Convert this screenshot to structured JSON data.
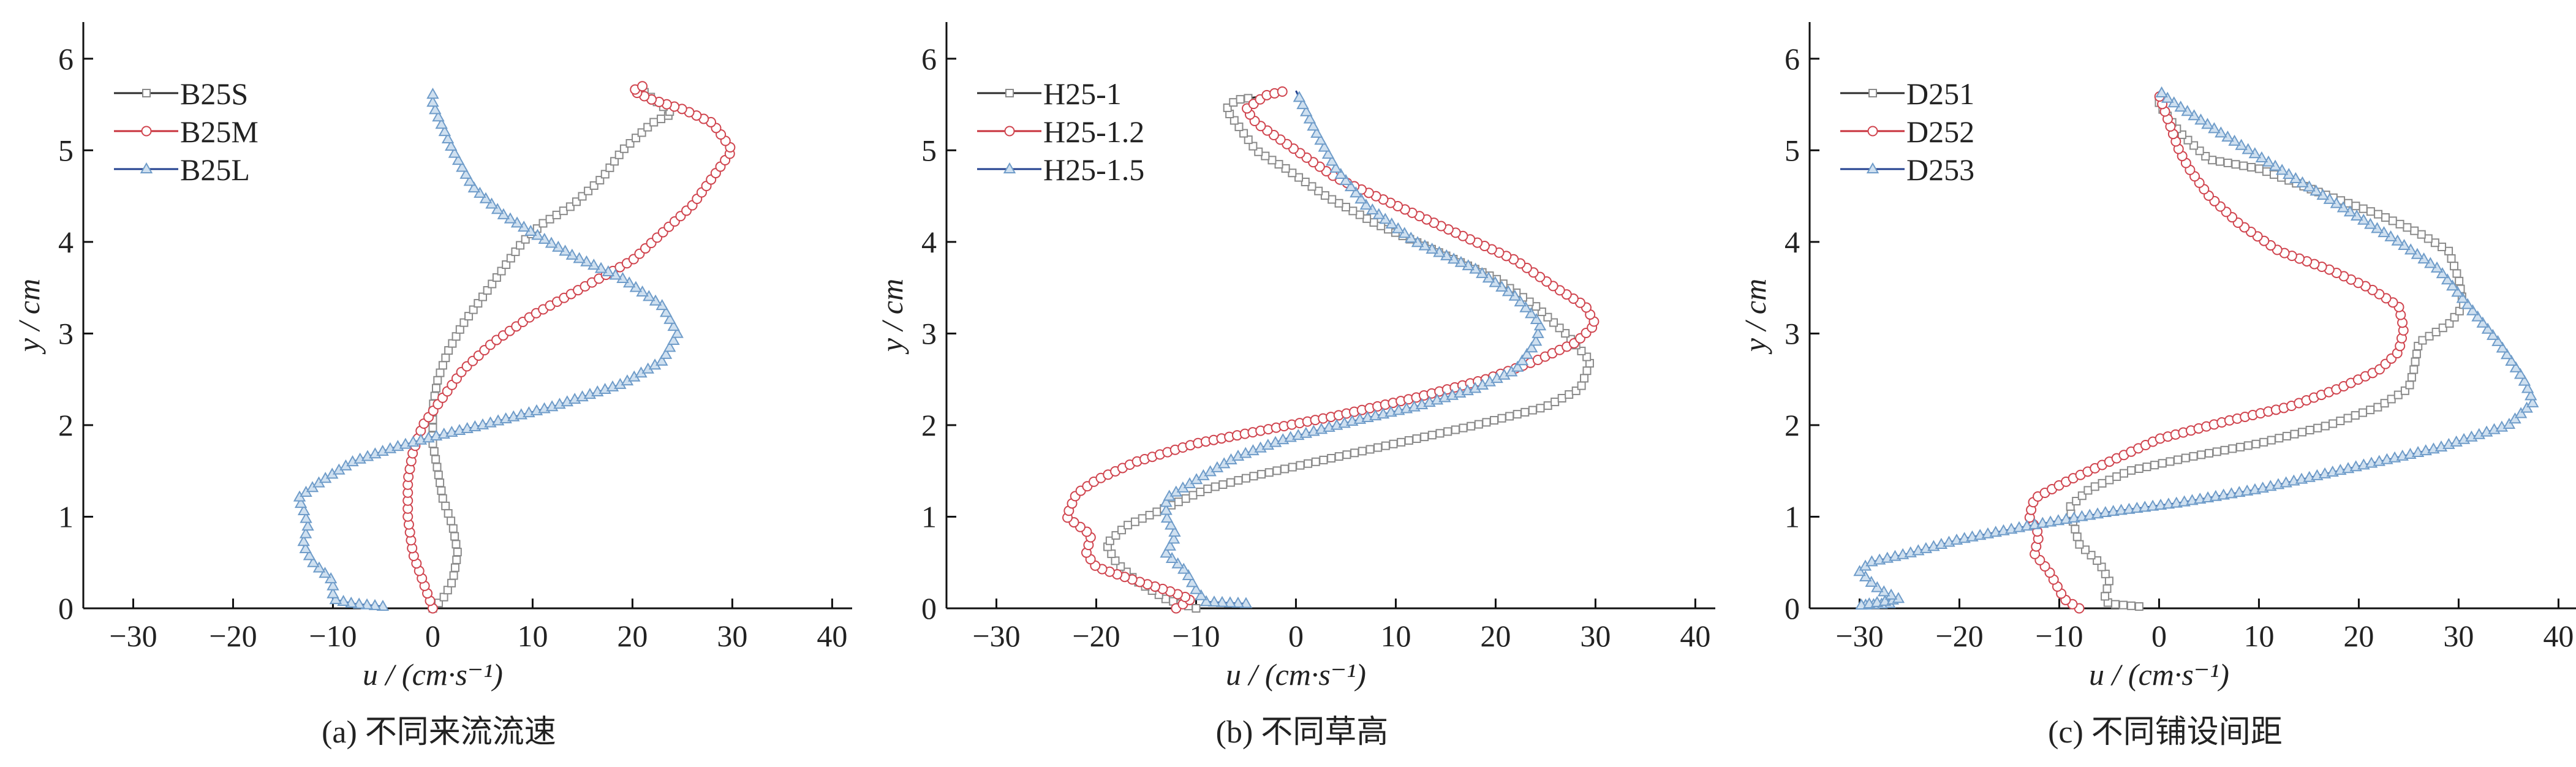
{
  "chart_data": [
    {
      "type": "line",
      "caption": "(a) 不同来流流速",
      "xlabel": "u / (cm·s⁻¹)",
      "ylabel": "y / cm",
      "xlim": [
        -35,
        42
      ],
      "ylim": [
        0,
        6.4
      ],
      "xticks": [
        -30,
        -20,
        -10,
        0,
        10,
        20,
        30,
        40
      ],
      "xtick_labels": [
        "−30",
        "−20",
        "−10",
        "0",
        "10",
        "20",
        "30",
        "40"
      ],
      "yticks": [
        0,
        1,
        2,
        3,
        4,
        5,
        6
      ],
      "ytick_labels": [
        "0",
        "1",
        "2",
        "3",
        "4",
        "5",
        "6"
      ],
      "grid": false,
      "legend_position": "top-left",
      "series": [
        {
          "name": "B25S",
          "marker": "square",
          "line_color": "#2b2b2b",
          "marker_color": "#8a8a8a",
          "u": [
            0,
            1,
            2,
            2.5,
            2,
            1,
            0.5,
            0,
            0,
            0.5,
            1.5,
            3,
            5,
            7,
            9,
            11,
            14,
            17,
            19,
            22,
            24,
            21
          ],
          "y": [
            0,
            0.1,
            0.3,
            0.6,
            0.9,
            1.2,
            1.5,
            1.8,
            2.2,
            2.5,
            2.8,
            3.1,
            3.4,
            3.7,
            4.0,
            4.2,
            4.4,
            4.7,
            5.0,
            5.3,
            5.4,
            5.65
          ]
        },
        {
          "name": "B25M",
          "marker": "circle",
          "line_color": "#c8323c",
          "marker_color": "#d0454f",
          "u": [
            0,
            -1,
            -2,
            -2.5,
            -2.5,
            -2,
            -1,
            1,
            3,
            6,
            10,
            15,
            20,
            23,
            26,
            28,
            30,
            28,
            25,
            22,
            20,
            21
          ],
          "y": [
            0,
            0.3,
            0.6,
            1.0,
            1.4,
            1.7,
            2.0,
            2.3,
            2.6,
            2.9,
            3.2,
            3.5,
            3.8,
            4.1,
            4.4,
            4.7,
            5.0,
            5.3,
            5.45,
            5.55,
            5.65,
            5.7
          ]
        },
        {
          "name": "B25L",
          "marker": "triangle",
          "line_color": "#22408f",
          "marker_color": "#6f9cc9",
          "u": [
            -5,
            -8,
            -10,
            -10,
            -12,
            -13,
            -12.5,
            -13,
            -13.5,
            -11,
            -8,
            -4,
            0,
            5,
            12,
            19,
            23,
            24.5,
            23,
            19,
            14,
            10,
            7,
            4,
            2,
            0,
            0
          ],
          "y": [
            0.02,
            0.05,
            0.1,
            0.3,
            0.5,
            0.7,
            0.9,
            1.1,
            1.2,
            1.4,
            1.6,
            1.75,
            1.87,
            2.0,
            2.2,
            2.45,
            2.7,
            3.0,
            3.3,
            3.6,
            3.85,
            4.1,
            4.3,
            4.6,
            5.0,
            5.5,
            5.62
          ]
        }
      ]
    },
    {
      "type": "line",
      "caption": "(b) 不同草高",
      "xlabel": "u / (cm·s⁻¹)",
      "ylabel": "y / cm",
      "xlim": [
        -35,
        42
      ],
      "ylim": [
        0,
        6.4
      ],
      "xticks": [
        -30,
        -20,
        -10,
        0,
        10,
        20,
        30,
        40
      ],
      "xtick_labels": [
        "−30",
        "−20",
        "−10",
        "0",
        "10",
        "20",
        "30",
        "40"
      ],
      "yticks": [
        0,
        1,
        2,
        3,
        4,
        5,
        6
      ],
      "ytick_labels": [
        "0",
        "1",
        "2",
        "3",
        "4",
        "5",
        "6"
      ],
      "grid": false,
      "legend_position": "top-left",
      "series": [
        {
          "name": "H25-1",
          "marker": "square",
          "line_color": "#2b2b2b",
          "marker_color": "#8a8a8a",
          "u": [
            -10,
            -13,
            -16,
            -18,
            -19,
            -17,
            -13,
            -9,
            -4,
            2,
            10,
            18,
            25,
            28.5,
            29.5,
            27,
            24,
            20,
            14,
            8,
            3,
            -1,
            -4,
            -6,
            -7,
            -6,
            -4
          ],
          "y": [
            0,
            0.1,
            0.3,
            0.5,
            0.7,
            0.9,
            1.1,
            1.3,
            1.45,
            1.6,
            1.8,
            2.0,
            2.2,
            2.4,
            2.7,
            3.0,
            3.3,
            3.6,
            3.9,
            4.2,
            4.5,
            4.8,
            5.0,
            5.3,
            5.45,
            5.55,
            5.58
          ]
        },
        {
          "name": "H25-1.2",
          "marker": "circle",
          "line_color": "#c8323c",
          "marker_color": "#d0454f",
          "u": [
            -12,
            -10.5,
            -13,
            -16,
            -20,
            -21,
            -20.5,
            -23,
            -22,
            -20,
            -16,
            -10,
            -3,
            4,
            12,
            19,
            24,
            28,
            30,
            29,
            26,
            22,
            16,
            10,
            4,
            0,
            -4,
            -5,
            -3,
            -1
          ],
          "y": [
            0,
            0.1,
            0.2,
            0.3,
            0.45,
            0.6,
            0.8,
            1.0,
            1.25,
            1.4,
            1.6,
            1.8,
            1.95,
            2.1,
            2.3,
            2.5,
            2.7,
            2.9,
            3.1,
            3.3,
            3.5,
            3.8,
            4.1,
            4.4,
            4.7,
            5.0,
            5.3,
            5.45,
            5.6,
            5.65
          ]
        },
        {
          "name": "H25-1.5",
          "marker": "triangle",
          "line_color": "#22408f",
          "marker_color": "#6f9cc9",
          "u": [
            -5,
            -9,
            -10,
            -11,
            -13,
            -12,
            -13,
            -13,
            -10,
            -6,
            -1,
            6,
            12,
            18,
            22,
            24,
            24.5,
            22,
            18,
            12,
            7,
            4,
            2,
            0
          ],
          "y": [
            0.05,
            0.07,
            0.2,
            0.4,
            0.6,
            0.8,
            1.0,
            1.2,
            1.4,
            1.65,
            1.85,
            2.05,
            2.2,
            2.4,
            2.6,
            2.9,
            3.1,
            3.4,
            3.7,
            4.0,
            4.4,
            4.8,
            5.2,
            5.65
          ]
        }
      ]
    },
    {
      "type": "line",
      "caption": "(c) 不同铺设间距",
      "xlabel": "u / (cm·s⁻¹)",
      "ylabel": "y / cm",
      "xlim": [
        -35,
        42
      ],
      "ylim": [
        0,
        6.4
      ],
      "xticks": [
        -30,
        -20,
        -10,
        0,
        10,
        20,
        30,
        40
      ],
      "xtick_labels": [
        "−30",
        "−20",
        "−10",
        "0",
        "10",
        "20",
        "30",
        "40"
      ],
      "yticks": [
        0,
        1,
        2,
        3,
        4,
        5,
        6
      ],
      "ytick_labels": [
        "0",
        "1",
        "2",
        "3",
        "4",
        "5",
        "6"
      ],
      "grid": false,
      "legend_position": "top-left",
      "series": [
        {
          "name": "D251",
          "marker": "square",
          "line_color": "#2b2b2b",
          "marker_color": "#8a8a8a",
          "u": [
            -2,
            -5,
            -5.5,
            -5,
            -6,
            -8,
            -8.5,
            -9,
            -7,
            -3,
            3,
            10,
            17,
            22,
            25,
            25.5,
            26,
            29,
            30.5,
            30,
            29,
            26,
            22,
            17,
            10,
            5,
            2,
            0,
            0
          ],
          "y": [
            0.02,
            0.05,
            0.1,
            0.3,
            0.5,
            0.7,
            0.9,
            1.1,
            1.3,
            1.5,
            1.65,
            1.8,
            2.0,
            2.2,
            2.4,
            2.6,
            2.9,
            3.1,
            3.3,
            3.6,
            3.9,
            4.1,
            4.3,
            4.5,
            4.8,
            4.9,
            5.2,
            5.5,
            5.6
          ]
        },
        {
          "name": "D252",
          "marker": "circle",
          "line_color": "#c8323c",
          "marker_color": "#d0454f",
          "u": [
            -8,
            -9.5,
            -10,
            -11,
            -12.5,
            -12,
            -13,
            -12.5,
            -9,
            -5,
            0,
            7,
            13,
            18,
            22,
            24,
            24.5,
            24,
            21,
            17,
            12,
            8,
            5,
            3,
            2,
            1,
            0
          ],
          "y": [
            0,
            0.1,
            0.2,
            0.4,
            0.6,
            0.8,
            1.0,
            1.2,
            1.4,
            1.6,
            1.85,
            2.05,
            2.2,
            2.4,
            2.6,
            2.8,
            3.05,
            3.3,
            3.5,
            3.7,
            3.9,
            4.2,
            4.5,
            4.8,
            5.0,
            5.3,
            5.6
          ]
        },
        {
          "name": "D253",
          "marker": "triangle",
          "line_color": "#22408f",
          "marker_color": "#6f9cc9",
          "u": [
            -27,
            -30,
            -26,
            -28,
            -30,
            -29,
            -25,
            -20,
            -13,
            -5,
            2,
            10,
            20,
            28,
            35,
            37.5,
            36.5,
            34,
            31,
            28,
            24,
            18,
            12,
            6,
            1,
            0
          ],
          "y": [
            0.05,
            0.03,
            0.1,
            0.2,
            0.4,
            0.5,
            0.6,
            0.75,
            0.9,
            1.05,
            1.15,
            1.3,
            1.55,
            1.75,
            2.0,
            2.25,
            2.5,
            2.9,
            3.3,
            3.7,
            4.0,
            4.4,
            4.8,
            5.2,
            5.55,
            5.65
          ]
        }
      ]
    }
  ]
}
